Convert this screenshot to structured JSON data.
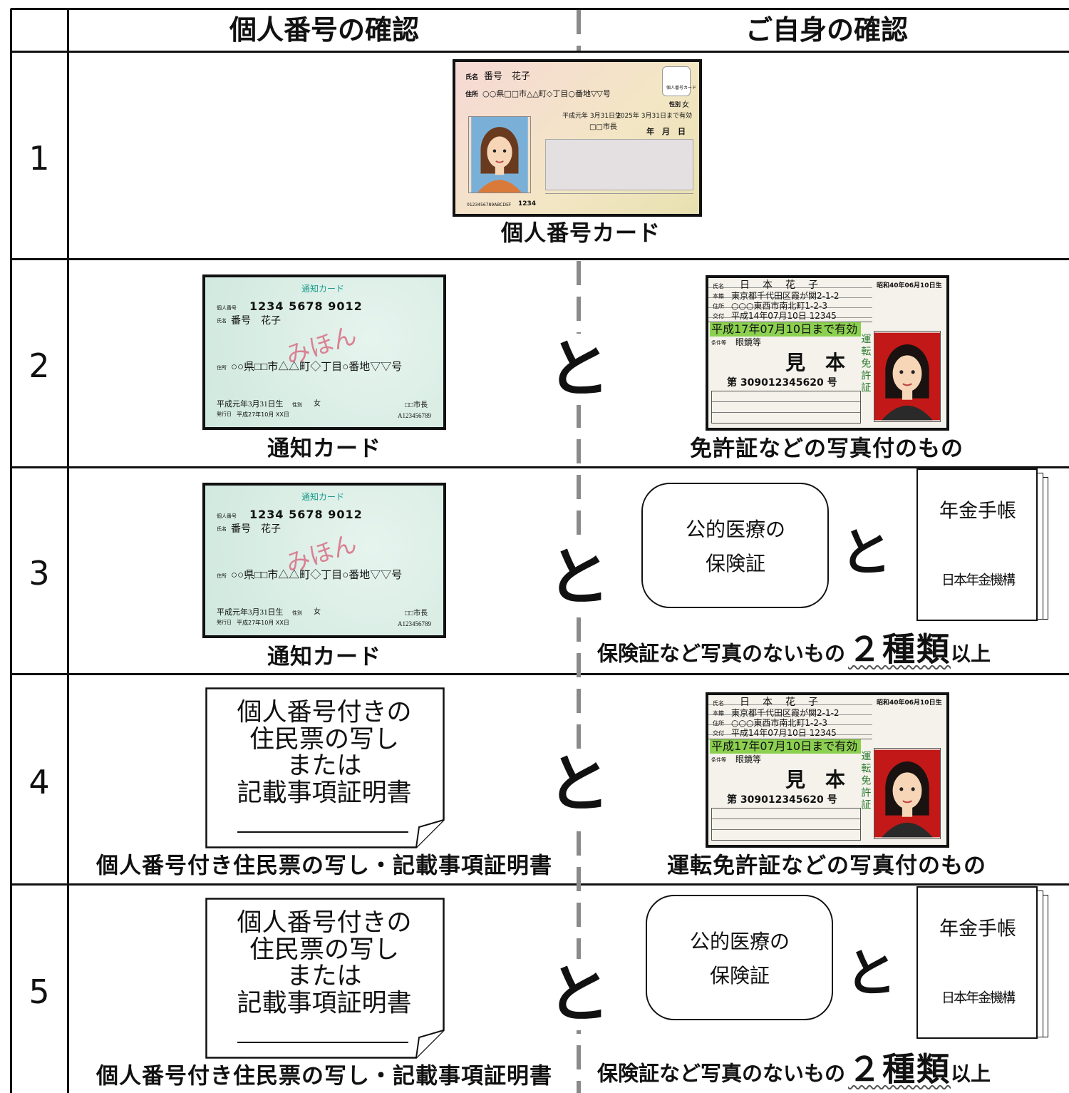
{
  "table": {
    "headers": [
      "個人番号の確認",
      "ご自身の確認"
    ],
    "rows": [
      {
        "number": "1",
        "left": {
          "my_number_card": {
            "name_label": "氏名",
            "name": "番号　花子",
            "address_label": "住所",
            "address": "○○県□□市△△町◇丁目○番地▽▽号",
            "logo": "個人番号カード",
            "sex_label": "性別",
            "sex": "女",
            "birth": "平成元年 3月31日生",
            "expiry": "2025年 3月31日まで有効",
            "issuer": "□□市長",
            "date": "年　月　日",
            "code": "0123456789ABCDEF",
            "pin": "1234"
          },
          "caption": "個人番号カード"
        }
      },
      {
        "number": "2",
        "left": {
          "notification_card": {
            "title": "通知カード",
            "number_label": "個人番号",
            "number": "1234 5678 9012",
            "name_label": "氏名",
            "name": "番号　花子",
            "sample": "みほん",
            "address_label": "住所",
            "address": "○○県□□市△△町◇丁目○番地▽▽号",
            "birth": "平成元年3月31日生",
            "sex_label": "性別",
            "sex": "女",
            "issuer": "□□市長",
            "issue_label": "発行日",
            "issue_date": "平成27年10月 XX日",
            "serial": "A123456789"
          },
          "caption": "通知カード"
        },
        "connector": "と",
        "right": {
          "drivers_license": {
            "name_label": "氏名",
            "name": "日　本　花　子",
            "birth": "昭和40年06月10日生",
            "domicile_label": "本籍",
            "domicile": "東京都千代田区霞が関2-1-2",
            "address_label": "住所",
            "address": "○○○東西市南北町1-2-3",
            "issued_label": "交付",
            "issued": "平成14年07月10日 12345",
            "expiry": "平成17年07月10日まで有効",
            "conditions_label": "条件等",
            "conditions": "眼鏡等",
            "sample": "見　本",
            "number": "第 309012345620 号",
            "vertical": "運転免許証"
          },
          "caption": "免許証などの写真付のもの"
        }
      },
      {
        "number": "3",
        "left": {
          "notification_card": {
            "title": "通知カード",
            "number_label": "個人番号",
            "number": "1234 5678 9012",
            "name_label": "氏名",
            "name": "番号　花子",
            "sample": "みほん",
            "address_label": "住所",
            "address": "○○県□□市△△町◇丁目○番地▽▽号",
            "birth": "平成元年3月31日生",
            "sex_label": "性別",
            "sex": "女",
            "issuer": "□□市長",
            "issue_label": "発行日",
            "issue_date": "平成27年10月 XX日",
            "serial": "A123456789"
          },
          "caption": "通知カード"
        },
        "connector": "と",
        "right": {
          "insurance_card": {
            "lines": [
              "公的医療の",
              "保険証"
            ]
          },
          "connector": "と",
          "pension_book": {
            "title": "年金手帳",
            "issuer": "日本年金機構"
          },
          "caption": {
            "text": "保険証など写真のないもの",
            "emphasis": "２種類",
            "suffix": "以上"
          }
        }
      },
      {
        "number": "4",
        "left": {
          "resident_record": {
            "lines": [
              "個人番号付きの",
              "住民票の写し",
              "または",
              "記載事項証明書"
            ]
          },
          "caption": "個人番号付き住民票の写し・記載事項証明書"
        },
        "connector": "と",
        "right": {
          "drivers_license": {
            "name_label": "氏名",
            "name": "日　本　花　子",
            "birth": "昭和40年06月10日生",
            "domicile_label": "本籍",
            "domicile": "東京都千代田区霞が関2-1-2",
            "address_label": "住所",
            "address": "○○○東西市南北町1-2-3",
            "issued_label": "交付",
            "issued": "平成14年07月10日 12345",
            "expiry": "平成17年07月10日まで有効",
            "conditions_label": "条件等",
            "conditions": "眼鏡等",
            "sample": "見　本",
            "number": "第 309012345620 号",
            "vertical": "運転免許証"
          },
          "caption": "運転免許証などの写真付のもの"
        }
      },
      {
        "number": "5",
        "left": {
          "resident_record": {
            "lines": [
              "個人番号付きの",
              "住民票の写し",
              "または",
              "記載事項証明書"
            ]
          },
          "caption": "個人番号付き住民票の写し・記載事項証明書"
        },
        "connector": "と",
        "right": {
          "insurance_card": {
            "lines": [
              "公的医療の",
              "保険証"
            ]
          },
          "connector": "と",
          "pension_book": {
            "title": "年金手帳",
            "issuer": "日本年金機構"
          },
          "caption": {
            "text": "保険証など写真のないもの",
            "emphasis": "２種類",
            "suffix": "以上"
          }
        }
      }
    ]
  }
}
